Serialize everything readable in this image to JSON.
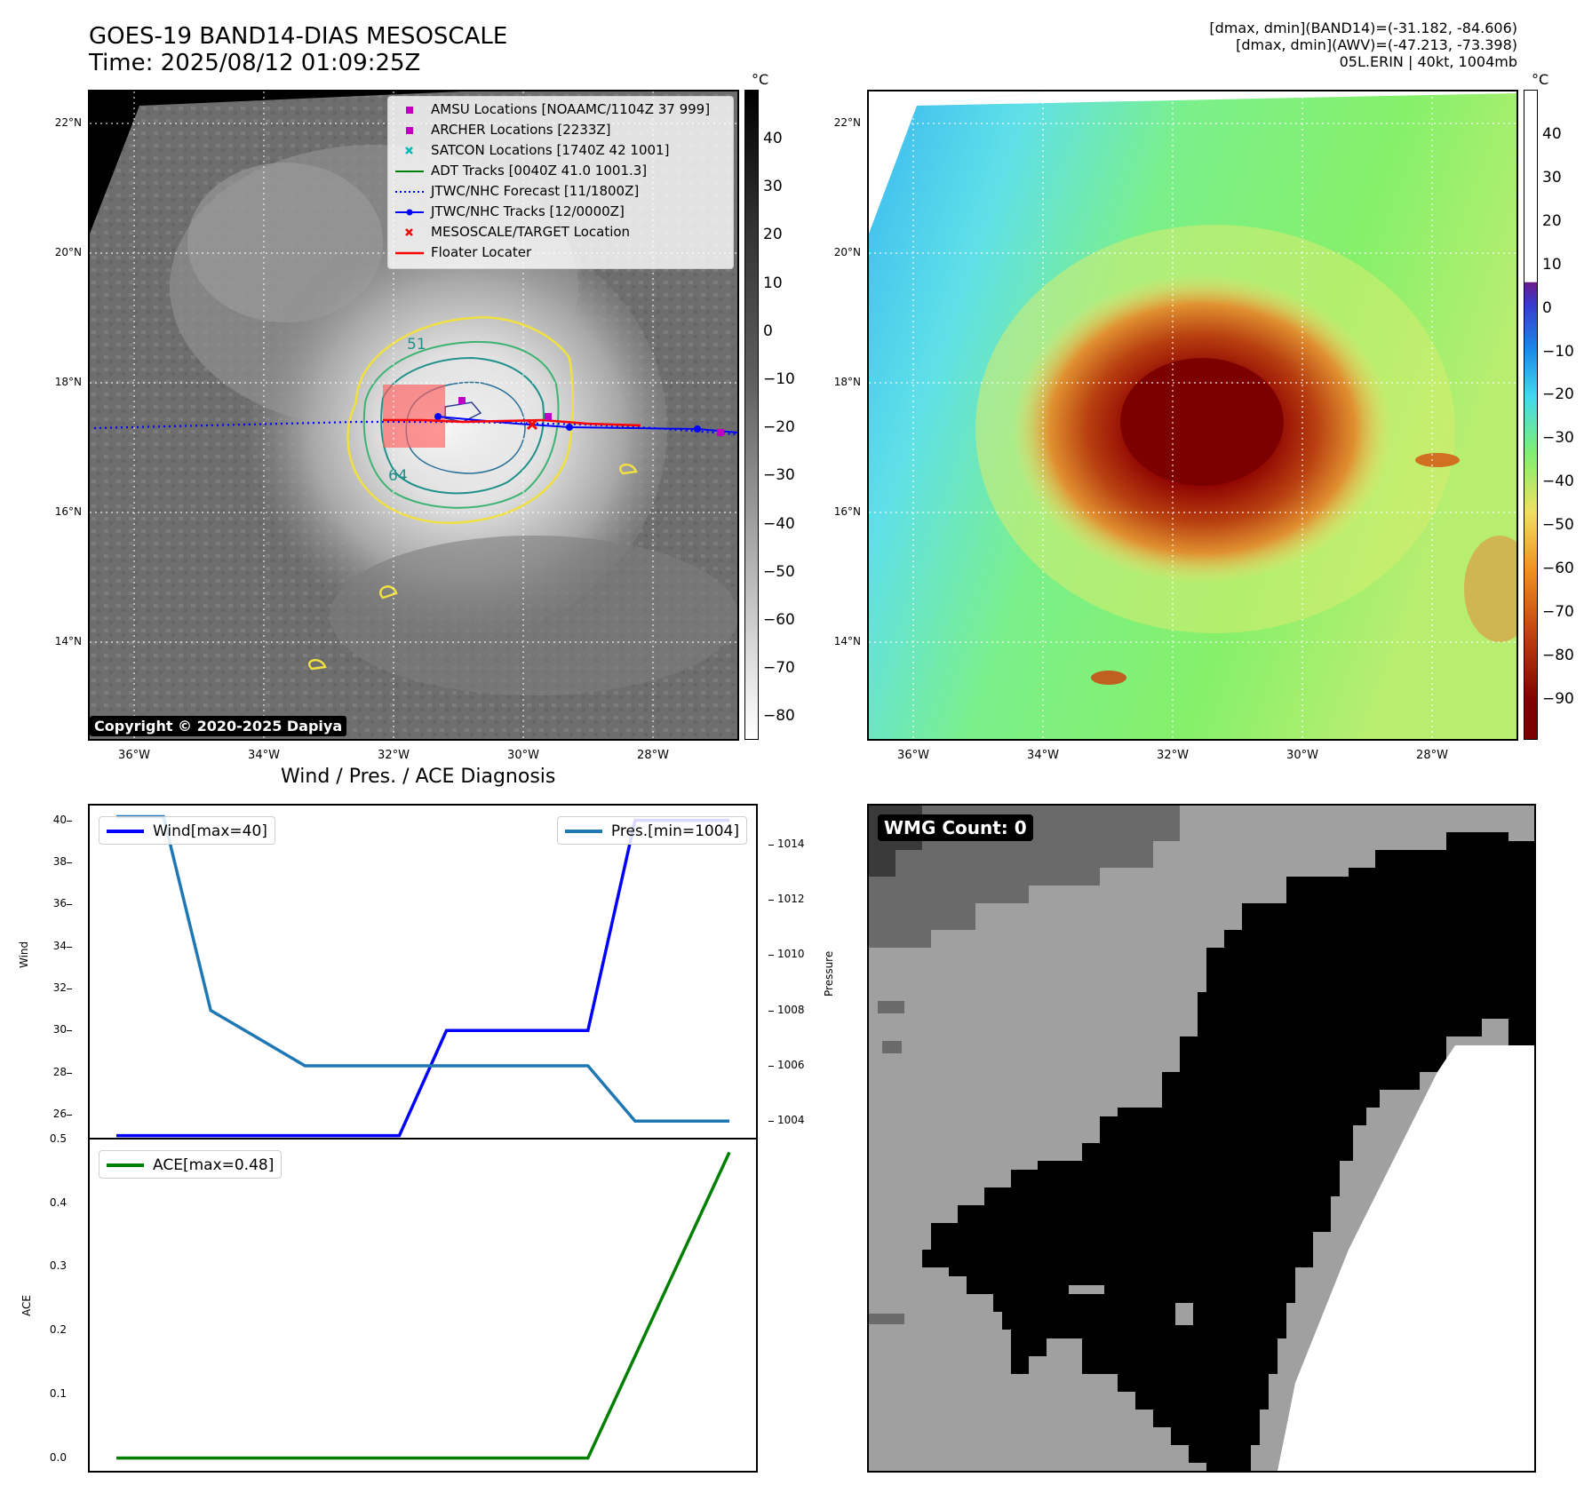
{
  "header": {
    "title_line1": "GOES-19 BAND14-DIAS MESOSCALE",
    "title_line2": "Time: 2025/08/12 01:09:25Z",
    "stats_line1": "[dmax, dmin](BAND14)=(-31.182, -84.606)",
    "stats_line2": "[dmax, dmin](AWV)=(-47.213, -73.398)",
    "stats_line3": "05L.ERIN | 40kt, 1004mb"
  },
  "maps": {
    "lat_labels": [
      "22°N",
      "20°N",
      "18°N",
      "16°N",
      "14°N"
    ],
    "lon_labels": [
      "36°W",
      "34°W",
      "32°W",
      "30°W",
      "28°W"
    ],
    "colorbar_unit": "°C",
    "ir_colorbar_ticks": [
      "40",
      "30",
      "20",
      "10",
      "0",
      "−10",
      "−20",
      "−30",
      "−40",
      "−50",
      "−60",
      "−70",
      "−80"
    ],
    "wv_colorbar_ticks": [
      "40",
      "30",
      "20",
      "10",
      "0",
      "−10",
      "−20",
      "−30",
      "−40",
      "−50",
      "−60",
      "−70",
      "−80",
      "−90"
    ],
    "contour_labels": [
      "64",
      "51"
    ],
    "copyright": "Copyright © 2020-2025 Dapiya",
    "legend": [
      {
        "label": "AMSU Locations [NOAAMC/1104Z 37 999]",
        "marker": "square",
        "color": "#c000c0"
      },
      {
        "label": "ARCHER Locations [2233Z]",
        "marker": "square",
        "color": "#c000c0"
      },
      {
        "label": "SATCON Locations [1740Z 42 1001]",
        "marker": "x",
        "color": "#00b8b8"
      },
      {
        "label": "ADT Tracks [0040Z 41.0 1001.3]",
        "marker": "line",
        "color": "#008000"
      },
      {
        "label": "JTWC/NHC Forecast [11/1800Z]",
        "marker": "dotted",
        "color": "#0000ff"
      },
      {
        "label": "JTWC/NHC Tracks [12/0000Z]",
        "marker": "line-dot",
        "color": "#0000ff"
      },
      {
        "label": "MESOSCALE/TARGET Location",
        "marker": "x",
        "color": "#ff0000"
      },
      {
        "label": "Floater Locater",
        "marker": "line",
        "color": "#ff0000"
      }
    ]
  },
  "diagnosis": {
    "title": "Wind / Pres. / ACE Diagnosis",
    "wind_axis_label": "Wind",
    "pressure_axis_label": "Pressure",
    "ace_axis_label": "ACE",
    "wind_legend": "Wind[max=40]",
    "pressure_legend": "Pres.[min=1004]",
    "ace_legend": "ACE[max=0.48]",
    "wmg_label": "WMG Count: 0"
  },
  "chart_data": [
    {
      "type": "line",
      "title": "Wind / Pres. / ACE Diagnosis",
      "ylabel": "Wind",
      "ylim": [
        24.9,
        40.7
      ],
      "yticks": [
        26,
        28,
        30,
        32,
        34,
        36,
        38,
        40
      ],
      "series": [
        {
          "name": "Wind[max=40]",
          "color": "#0000ff",
          "axis": "left",
          "x": [
            0,
            1,
            2,
            3,
            4,
            5,
            6,
            7,
            8,
            9,
            10,
            11,
            12,
            13
          ],
          "values": [
            25,
            25,
            25,
            25,
            25,
            25,
            25,
            30,
            30,
            30,
            30,
            40,
            40,
            40
          ]
        },
        {
          "name": "Pres.[min=1004]",
          "color": "#1f77b4",
          "axis": "right",
          "x": [
            0,
            1,
            2,
            3,
            4,
            5,
            6,
            7,
            8,
            9,
            10,
            11,
            12,
            13
          ],
          "values": [
            1015,
            1015,
            1008,
            1007,
            1006,
            1006,
            1006,
            1006,
            1006,
            1006,
            1006,
            1004,
            1004,
            1004
          ]
        }
      ],
      "y2label": "Pressure",
      "y2lim": [
        1003.4,
        1015.4
      ],
      "y2ticks": [
        1004,
        1006,
        1008,
        1010,
        1012,
        1014
      ]
    },
    {
      "type": "line",
      "ylabel": "ACE",
      "ylim": [
        -0.02,
        0.5
      ],
      "yticks": [
        0.0,
        0.1,
        0.2,
        0.3,
        0.4,
        0.5
      ],
      "series": [
        {
          "name": "ACE[max=0.48]",
          "color": "#008000",
          "x": [
            0,
            1,
            2,
            3,
            4,
            5,
            6,
            7,
            8,
            9,
            10,
            11,
            12,
            13
          ],
          "values": [
            0,
            0,
            0,
            0,
            0,
            0,
            0,
            0,
            0,
            0,
            0,
            0.16,
            0.32,
            0.48
          ]
        }
      ]
    }
  ]
}
